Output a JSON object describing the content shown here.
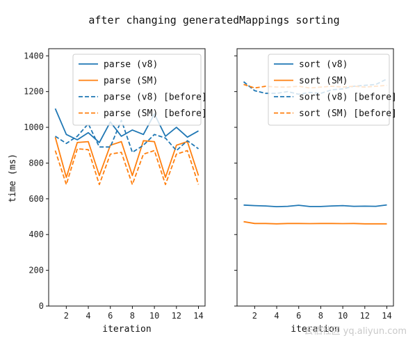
{
  "watermark": "云栖社区 yq.aliyun.com",
  "chart_data": {
    "type": "line",
    "title": "after changing generatedMappings sorting",
    "ylabel": "time (ms)",
    "ylim": [
      0,
      1440
    ],
    "yticks": [
      0,
      200,
      400,
      600,
      800,
      1000,
      1200,
      1400
    ],
    "shared_y": true,
    "colors": {
      "v8": "#1f77b4",
      "sm": "#ff7f0e"
    },
    "panels": [
      {
        "name": "parse",
        "xlabel": "iteration",
        "xlim": [
          0.4,
          14.6
        ],
        "xticks": [
          2,
          4,
          6,
          8,
          10,
          12,
          14
        ],
        "legend_position": "top-right",
        "series": [
          {
            "name": "parse (v8)",
            "color": "#1f77b4",
            "dash": "solid",
            "x": [
              1,
              2,
              3,
              4,
              5,
              6,
              7,
              8,
              9,
              10,
              11,
              12,
              13,
              14
            ],
            "y": [
              1105,
              960,
              930,
              970,
              915,
              1030,
              950,
              985,
              960,
              1075,
              950,
              1000,
              945,
              980
            ]
          },
          {
            "name": "parse (SM)",
            "color": "#ff7f0e",
            "dash": "solid",
            "x": [
              1,
              2,
              3,
              4,
              5,
              6,
              7,
              8,
              9,
              10,
              11,
              12,
              13,
              14
            ],
            "y": [
              945,
              720,
              915,
              920,
              730,
              900,
              920,
              730,
              925,
              920,
              720,
              900,
              920,
              730
            ]
          },
          {
            "name": "parse (v8) [before]",
            "color": "#1f77b4",
            "dash": "dashed",
            "x": [
              1,
              2,
              3,
              4,
              5,
              6,
              7,
              8,
              9,
              10,
              11,
              12,
              13,
              14
            ],
            "y": [
              950,
              910,
              950,
              1020,
              890,
              890,
              1040,
              860,
              900,
              960,
              940,
              870,
              925,
              880
            ]
          },
          {
            "name": "parse (SM) [before]",
            "color": "#ff7f0e",
            "dash": "dashed",
            "x": [
              1,
              2,
              3,
              4,
              5,
              6,
              7,
              8,
              9,
              10,
              11,
              12,
              13,
              14
            ],
            "y": [
              870,
              680,
              880,
              875,
              680,
              850,
              860,
              680,
              850,
              870,
              680,
              850,
              870,
              680
            ]
          }
        ]
      },
      {
        "name": "sort",
        "xlabel": "iteration",
        "xlim": [
          0.4,
          14.6
        ],
        "xticks": [
          2,
          4,
          6,
          8,
          10,
          12,
          14
        ],
        "legend_position": "top-right",
        "series": [
          {
            "name": "sort (v8)",
            "color": "#1f77b4",
            "dash": "solid",
            "x": [
              1,
              2,
              3,
              4,
              5,
              6,
              7,
              8,
              9,
              10,
              11,
              12,
              13,
              14
            ],
            "y": [
              565,
              562,
              560,
              556,
              558,
              564,
              557,
              557,
              560,
              562,
              558,
              559,
              558,
              566
            ]
          },
          {
            "name": "sort (SM)",
            "color": "#ff7f0e",
            "dash": "solid",
            "x": [
              1,
              2,
              3,
              4,
              5,
              6,
              7,
              8,
              9,
              10,
              11,
              12,
              13,
              14
            ],
            "y": [
              472,
              462,
              462,
              460,
              462,
              462,
              461,
              462,
              462,
              461,
              462,
              460,
              460,
              460
            ]
          },
          {
            "name": "sort (v8) [before]",
            "color": "#1f77b4",
            "dash": "dashed",
            "x": [
              1,
              2,
              3,
              4,
              5,
              6,
              7,
              8,
              9,
              10,
              11,
              12,
              13,
              14
            ],
            "y": [
              1255,
              1205,
              1190,
              1190,
              1200,
              1185,
              1195,
              1190,
              1210,
              1215,
              1230,
              1235,
              1240,
              1270
            ]
          },
          {
            "name": "sort (SM) [before]",
            "color": "#ff7f0e",
            "dash": "dashed",
            "x": [
              1,
              2,
              3,
              4,
              5,
              6,
              7,
              8,
              9,
              10,
              11,
              12,
              13,
              14
            ],
            "y": [
              1240,
              1220,
              1230,
              1225,
              1225,
              1230,
              1220,
              1225,
              1230,
              1225,
              1230,
              1225,
              1230,
              1235
            ]
          }
        ]
      }
    ]
  }
}
